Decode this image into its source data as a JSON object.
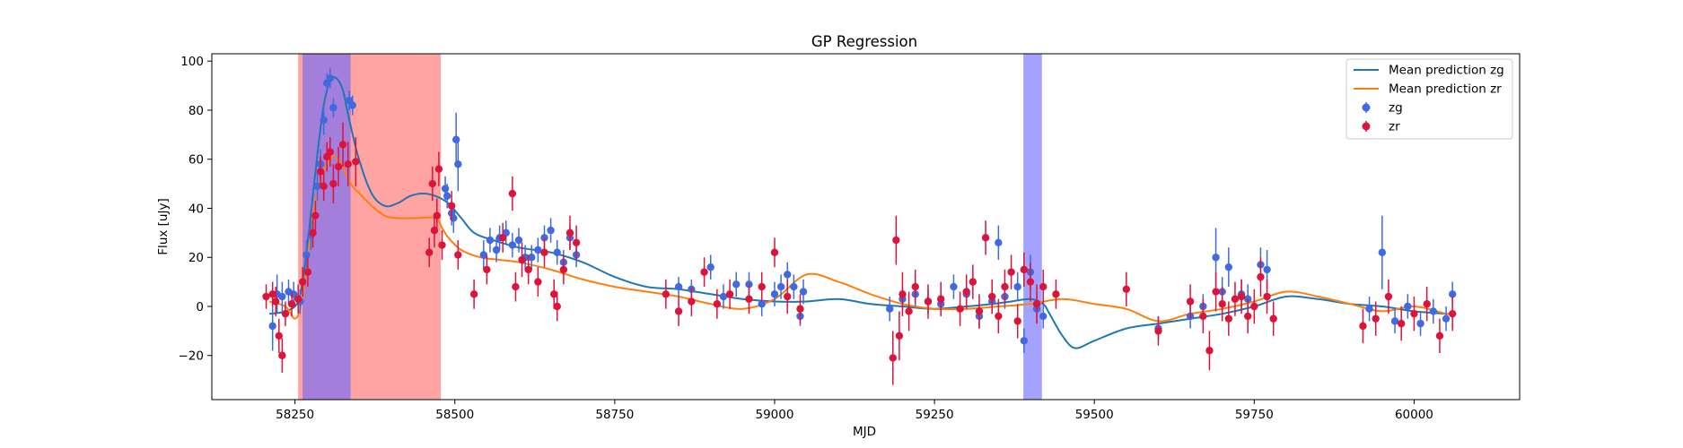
{
  "chart_data": {
    "type": "scatter",
    "title": "GP Regression",
    "xlabel": "MJD",
    "ylabel": "Flux [uJy]",
    "xlim": [
      58120,
      60165
    ],
    "ylim": [
      -38,
      103
    ],
    "xticks": [
      58250,
      58500,
      58750,
      59000,
      59250,
      59500,
      59750,
      60000
    ],
    "yticks": [
      -20,
      0,
      20,
      40,
      60,
      80,
      100
    ],
    "grid": false,
    "legend": {
      "placement": "top-right",
      "entries": [
        "Mean prediction zg",
        "Mean prediction zr",
        "zg",
        "zr"
      ]
    },
    "colors": {
      "zg_line": "#1f77b4",
      "zr_line": "#ff7f0e",
      "zg_points": "#4169e1",
      "zr_points": "#dc143c",
      "red_span": "#ff6666",
      "blue_span": "#6666ff",
      "purple_overlap": "#b35fa8"
    },
    "shaded_spans": [
      {
        "band": "zr",
        "x0": 58255,
        "x1": 58478
      },
      {
        "band": "zg",
        "x0": 58262,
        "x1": 58337
      },
      {
        "band": "zg",
        "x0": 59389,
        "x1": 59418
      }
    ],
    "series": [
      {
        "name": "Mean prediction zg",
        "kind": "line",
        "x": [
          58210,
          58235,
          58255,
          58265,
          58275,
          58285,
          58295,
          58305,
          58315,
          58325,
          58335,
          58350,
          58370,
          58390,
          58410,
          58430,
          58450,
          58470,
          58490,
          58510,
          58530,
          58560,
          58600,
          58650,
          58700,
          58750,
          58800,
          58850,
          58900,
          58950,
          59000,
          59050,
          59100,
          59150,
          59200,
          59250,
          59300,
          59340,
          59370,
          59400,
          59420,
          59430,
          59450,
          59470,
          59500,
          59550,
          59600,
          59650,
          59700,
          59750,
          59800,
          59850,
          59900,
          59950,
          60000,
          60050,
          60060
        ],
        "y": [
          -3,
          -2,
          2,
          16,
          38,
          62,
          82,
          92,
          93,
          88,
          76,
          60,
          46,
          41,
          42,
          45,
          46,
          45,
          42,
          36,
          30,
          27,
          24,
          22,
          18,
          12,
          8,
          7,
          5,
          3,
          2,
          2,
          3,
          1,
          0,
          -1,
          0,
          1,
          2,
          3,
          1,
          -3,
          -12,
          -17,
          -14,
          -9,
          -7,
          -5,
          -3,
          0,
          4,
          3,
          1,
          0,
          -2,
          -3,
          -3
        ]
      },
      {
        "name": "Mean prediction zr",
        "kind": "line",
        "x": [
          58210,
          58235,
          58250,
          58260,
          58270,
          58280,
          58290,
          58300,
          58310,
          58320,
          58330,
          58340,
          58355,
          58370,
          58390,
          58410,
          58440,
          58470,
          58480,
          58490,
          58510,
          58540,
          58570,
          58600,
          58650,
          58700,
          58750,
          58800,
          58850,
          58900,
          58950,
          59000,
          59050,
          59100,
          59150,
          59200,
          59250,
          59300,
          59350,
          59400,
          59450,
          59500,
          59550,
          59600,
          59650,
          59700,
          59750,
          59800,
          59850,
          59900,
          59950,
          60000,
          60050,
          60060
        ],
        "y": [
          2,
          0,
          -5,
          1,
          20,
          40,
          52,
          58,
          61,
          59,
          54,
          49,
          45,
          41,
          37,
          36,
          36,
          36,
          32,
          28,
          23,
          20,
          19,
          18,
          15,
          11,
          8,
          6,
          4,
          1,
          -1,
          3,
          13,
          10,
          5,
          1,
          -1,
          -1,
          0,
          1,
          3,
          1,
          -1,
          -6,
          -3,
          -1,
          2,
          6,
          4,
          1,
          -2,
          0,
          -3,
          -3
        ]
      },
      {
        "name": "zg",
        "kind": "points",
        "x": [
          58215,
          58222,
          58230,
          58240,
          58248,
          58258,
          58268,
          58275,
          58285,
          58290,
          58295,
          58300,
          58305,
          58310,
          58335,
          58340,
          58485,
          58488,
          58495,
          58498,
          58502,
          58505,
          58545,
          58555,
          58565,
          58570,
          58580,
          58590,
          58600,
          58610,
          58620,
          58630,
          58640,
          58650,
          58660,
          58670,
          58680,
          58690,
          58850,
          58870,
          58900,
          58920,
          58940,
          58960,
          58980,
          59000,
          59010,
          59020,
          59030,
          59040,
          59045,
          59180,
          59200,
          59220,
          59240,
          59260,
          59280,
          59300,
          59320,
          59340,
          59350,
          59360,
          59380,
          59390,
          59400,
          59410,
          59420,
          59600,
          59650,
          59670,
          59690,
          59700,
          59710,
          59730,
          59740,
          59760,
          59770,
          59930,
          59950,
          59970,
          59990,
          60010,
          60030,
          60050,
          60060
        ],
        "y": [
          -8,
          5,
          4,
          6,
          5,
          2,
          21,
          29,
          49,
          58,
          76,
          91,
          93,
          81,
          84,
          82,
          48,
          45,
          38,
          36,
          68,
          58,
          21,
          27,
          23,
          28,
          30,
          25,
          27,
          20,
          20,
          23,
          28,
          31,
          22,
          18,
          28,
          21,
          8,
          7,
          16,
          4,
          9,
          9,
          1,
          5,
          8,
          13,
          8,
          -4,
          6,
          -1,
          3,
          5,
          2,
          1,
          8,
          5,
          -4,
          2,
          26,
          4,
          8,
          -14,
          14,
          -1,
          -4,
          -9,
          -4,
          0,
          20,
          6,
          16,
          5,
          3,
          17,
          15,
          -1,
          22,
          -6,
          0,
          -7,
          -2,
          -5,
          5
        ],
        "err": [
          10,
          8,
          6,
          5,
          5,
          5,
          6,
          6,
          6,
          6,
          6,
          4,
          4,
          4,
          4,
          4,
          5,
          5,
          5,
          6,
          11,
          11,
          6,
          5,
          5,
          5,
          5,
          5,
          5,
          5,
          5,
          5,
          5,
          5,
          5,
          5,
          5,
          5,
          4,
          4,
          5,
          5,
          5,
          5,
          5,
          5,
          5,
          5,
          5,
          4,
          5,
          5,
          5,
          5,
          5,
          5,
          5,
          5,
          5,
          5,
          7,
          5,
          6,
          5,
          7,
          6,
          5,
          5,
          5,
          5,
          12,
          6,
          8,
          6,
          6,
          7,
          8,
          5,
          15,
          5,
          5,
          5,
          5,
          5,
          5
        ]
      },
      {
        "name": "zr",
        "kind": "points",
        "x": [
          58205,
          58215,
          58220,
          58225,
          58230,
          58235,
          58245,
          58255,
          58262,
          58270,
          58278,
          58282,
          58290,
          58295,
          58300,
          58305,
          58310,
          58318,
          58325,
          58333,
          58345,
          58460,
          58465,
          58468,
          58472,
          58475,
          58480,
          58495,
          58505,
          58530,
          58550,
          58575,
          58590,
          58595,
          58605,
          58615,
          58630,
          58640,
          58655,
          58660,
          58670,
          58680,
          58690,
          58830,
          58850,
          58870,
          58890,
          58910,
          58930,
          58960,
          58980,
          59000,
          59020,
          59040,
          59185,
          59190,
          59195,
          59200,
          59210,
          59220,
          59240,
          59260,
          59290,
          59300,
          59310,
          59320,
          59330,
          59340,
          59350,
          59360,
          59370,
          59380,
          59390,
          59400,
          59410,
          59420,
          59440,
          59550,
          59600,
          59650,
          59670,
          59680,
          59690,
          59700,
          59710,
          59720,
          59730,
          59740,
          59750,
          59760,
          59770,
          59780,
          59920,
          59940,
          59960,
          59980,
          60000,
          60020,
          60040,
          60060
        ],
        "y": [
          4,
          5,
          2,
          -12,
          -20,
          -3,
          1,
          3,
          10,
          14,
          30,
          37,
          55,
          49,
          61,
          63,
          50,
          57,
          66,
          58,
          59,
          22,
          50,
          31,
          37,
          56,
          25,
          41,
          21,
          5,
          15,
          28,
          46,
          8,
          19,
          15,
          10,
          22,
          5,
          0,
          15,
          30,
          26,
          5,
          -2,
          2,
          14,
          1,
          5,
          3,
          8,
          22,
          4,
          -1,
          -21,
          27,
          -12,
          5,
          -2,
          8,
          2,
          3,
          -1,
          6,
          10,
          -2,
          28,
          4,
          -4,
          8,
          14,
          -6,
          15,
          10,
          1,
          8,
          5,
          7,
          -10,
          2,
          -4,
          -18,
          6,
          1,
          -5,
          3,
          4,
          -4,
          0,
          12,
          4,
          -5,
          -8,
          -5,
          4,
          -7,
          -3,
          1,
          -12,
          -3
        ],
        "err": [
          5,
          5,
          6,
          7,
          7,
          5,
          5,
          6,
          6,
          6,
          6,
          6,
          6,
          6,
          6,
          6,
          8,
          8,
          9,
          9,
          10,
          6,
          7,
          7,
          7,
          7,
          6,
          6,
          6,
          6,
          6,
          6,
          7,
          6,
          7,
          6,
          6,
          6,
          6,
          6,
          6,
          7,
          7,
          6,
          6,
          6,
          6,
          6,
          6,
          6,
          6,
          6,
          7,
          6,
          11,
          10,
          10,
          9,
          8,
          7,
          7,
          7,
          7,
          7,
          7,
          7,
          7,
          7,
          7,
          7,
          7,
          7,
          7,
          8,
          8,
          7,
          6,
          7,
          6,
          7,
          7,
          8,
          8,
          7,
          7,
          7,
          7,
          7,
          7,
          8,
          7,
          7,
          7,
          7,
          7,
          7,
          7,
          7,
          7,
          7
        ]
      }
    ]
  }
}
